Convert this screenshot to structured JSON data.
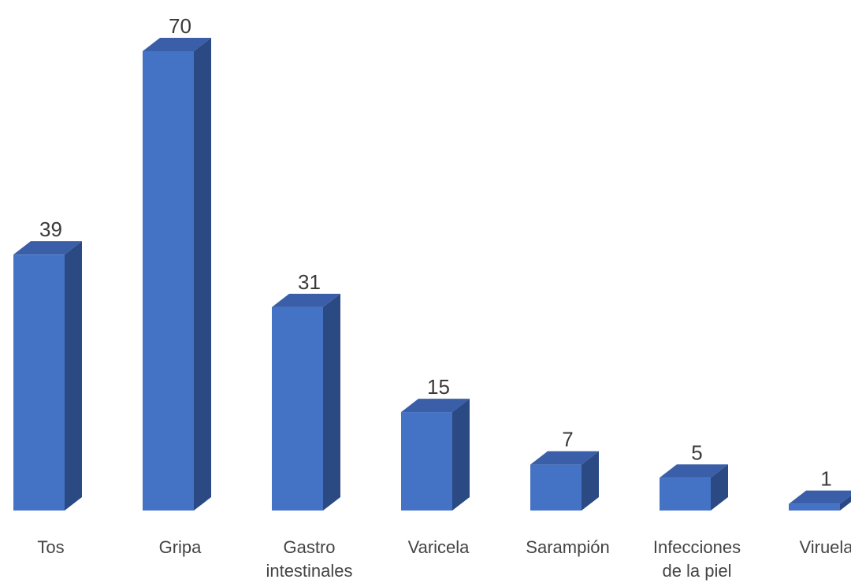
{
  "chart_data": {
    "type": "bar",
    "style": "3d-column",
    "title": "",
    "xlabel": "",
    "ylabel": "",
    "categories": [
      [
        "Tos"
      ],
      [
        "Gripa"
      ],
      [
        "Gastro",
        "intestinales"
      ],
      [
        "Varicela"
      ],
      [
        "Sarampión"
      ],
      [
        "Infecciones",
        "de la piel"
      ],
      [
        "Viruela"
      ]
    ],
    "values": [
      39,
      70,
      31,
      15,
      7,
      5,
      1
    ],
    "ylim": [
      0,
      70
    ],
    "grid": false,
    "legend": "none",
    "colors": {
      "front": "#4472c4",
      "side": "#2b4a84",
      "top": "#3a5fa8"
    }
  }
}
